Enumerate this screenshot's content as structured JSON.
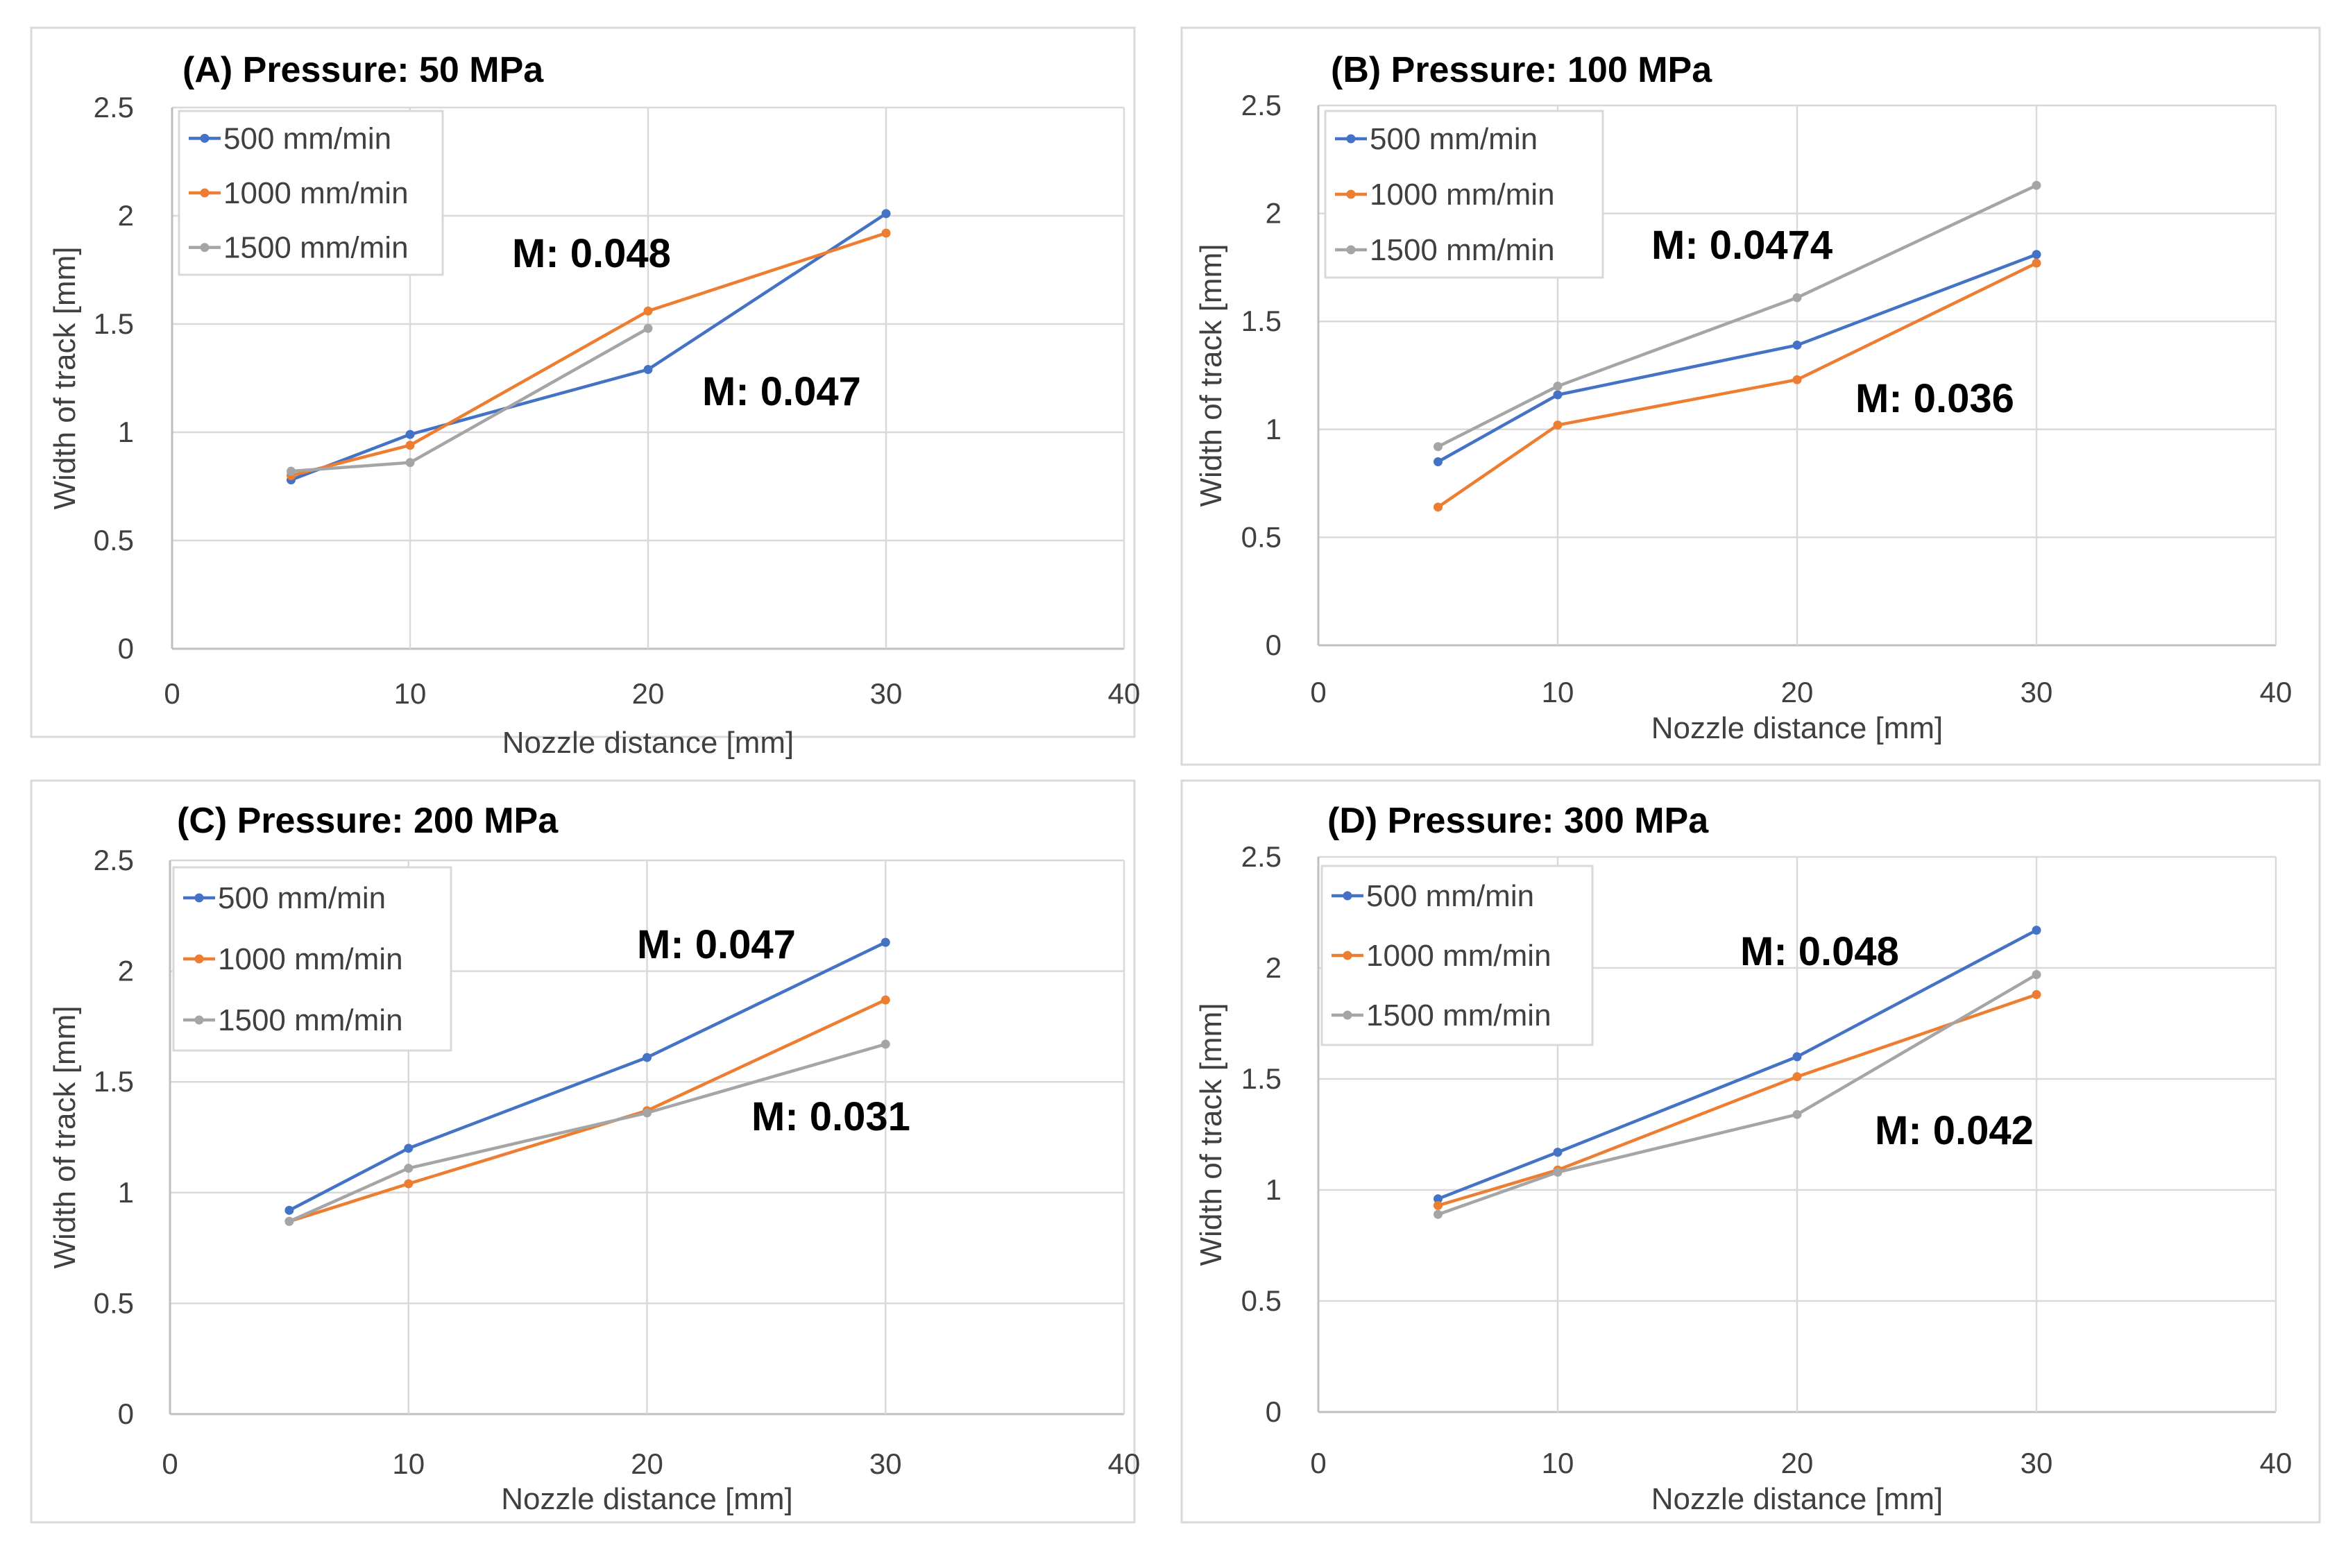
{
  "colors": {
    "series_500": "#4472c4",
    "series_1000": "#ed7d31",
    "series_1500": "#a5a5a5"
  },
  "chart_data": [
    {
      "type": "line",
      "title": "(A) Pressure: 50 MPa",
      "xlabel": "Nozzle distance [mm]",
      "ylabel": "Width of track [mm]",
      "xlim": [
        0,
        40
      ],
      "ylim": [
        0,
        2.5
      ],
      "xticks": [
        "0",
        "10",
        "20",
        "30",
        "40"
      ],
      "yticks": [
        "0",
        "0.5",
        "1",
        "1.5",
        "2",
        "2.5"
      ],
      "grid": true,
      "legend_position": "top-left",
      "x": [
        5,
        10,
        20,
        30
      ],
      "series": [
        {
          "name": "500 mm/min",
          "color": "#4472c4",
          "values": [
            0.78,
            0.99,
            1.29,
            2.01
          ]
        },
        {
          "name": "1000 mm/min",
          "color": "#ed7d31",
          "values": [
            0.8,
            0.94,
            1.56,
            1.92
          ]
        },
        {
          "name": "1500 mm/min",
          "color": "#a5a5a5",
          "values": [
            0.82,
            0.86,
            1.48,
            null
          ]
        }
      ],
      "annotations": [
        "M: 0.048",
        "M: 0.047"
      ]
    },
    {
      "type": "line",
      "title": "(B) Pressure: 100 MPa",
      "xlabel": "Nozzle distance [mm]",
      "ylabel": "Width of track [mm]",
      "xlim": [
        0,
        40
      ],
      "ylim": [
        0,
        2.5
      ],
      "xticks": [
        "0",
        "10",
        "20",
        "30",
        "40"
      ],
      "yticks": [
        "0",
        "0.5",
        "1",
        "1.5",
        "2",
        "2.5"
      ],
      "grid": true,
      "legend_position": "top-left",
      "x": [
        5,
        10,
        20,
        30
      ],
      "series": [
        {
          "name": "500 mm/min",
          "color": "#4472c4",
          "values": [
            0.85,
            1.16,
            1.39,
            1.81
          ]
        },
        {
          "name": "1000 mm/min",
          "color": "#ed7d31",
          "values": [
            0.64,
            1.02,
            1.23,
            1.77
          ]
        },
        {
          "name": "1500 mm/min",
          "color": "#a5a5a5",
          "values": [
            0.92,
            1.2,
            1.61,
            2.13
          ]
        }
      ],
      "annotations": [
        "M: 0.0474",
        "M: 0.036"
      ]
    },
    {
      "type": "line",
      "title": "(C) Pressure: 200 MPa",
      "xlabel": "Nozzle distance [mm]",
      "ylabel": "Width of track [mm]",
      "xlim": [
        0,
        40
      ],
      "ylim": [
        0,
        2.5
      ],
      "xticks": [
        "0",
        "10",
        "20",
        "30",
        "40"
      ],
      "yticks": [
        "0",
        "0.5",
        "1",
        "1.5",
        "2",
        "2.5"
      ],
      "grid": true,
      "legend_position": "top-left",
      "x": [
        5,
        10,
        20,
        30
      ],
      "series": [
        {
          "name": "500 mm/min",
          "color": "#4472c4",
          "values": [
            0.92,
            1.2,
            1.61,
            2.13
          ]
        },
        {
          "name": "1000 mm/min",
          "color": "#ed7d31",
          "values": [
            0.87,
            1.04,
            1.37,
            1.87
          ]
        },
        {
          "name": "1500 mm/min",
          "color": "#a5a5a5",
          "values": [
            0.87,
            1.11,
            1.36,
            1.67
          ]
        }
      ],
      "annotations": [
        "M: 0.047",
        "M: 0.031"
      ]
    },
    {
      "type": "line",
      "title": "(D) Pressure: 300 MPa",
      "xlabel": "Nozzle distance [mm]",
      "ylabel": "Width of track [mm]",
      "xlim": [
        0,
        40
      ],
      "ylim": [
        0,
        2.5
      ],
      "xticks": [
        "0",
        "10",
        "20",
        "30",
        "40"
      ],
      "yticks": [
        "0",
        "0.5",
        "1",
        "1.5",
        "2",
        "2.5"
      ],
      "grid": true,
      "legend_position": "top-left",
      "x": [
        5,
        10,
        20,
        30
      ],
      "series": [
        {
          "name": "500 mm/min",
          "color": "#4472c4",
          "values": [
            0.96,
            1.17,
            1.6,
            2.17
          ]
        },
        {
          "name": "1000 mm/min",
          "color": "#ed7d31",
          "values": [
            0.93,
            1.09,
            1.51,
            1.88
          ]
        },
        {
          "name": "1500 mm/min",
          "color": "#a5a5a5",
          "values": [
            0.89,
            1.08,
            1.34,
            1.97
          ]
        }
      ],
      "annotations": [
        "M: 0.048",
        "M: 0.042"
      ]
    }
  ]
}
